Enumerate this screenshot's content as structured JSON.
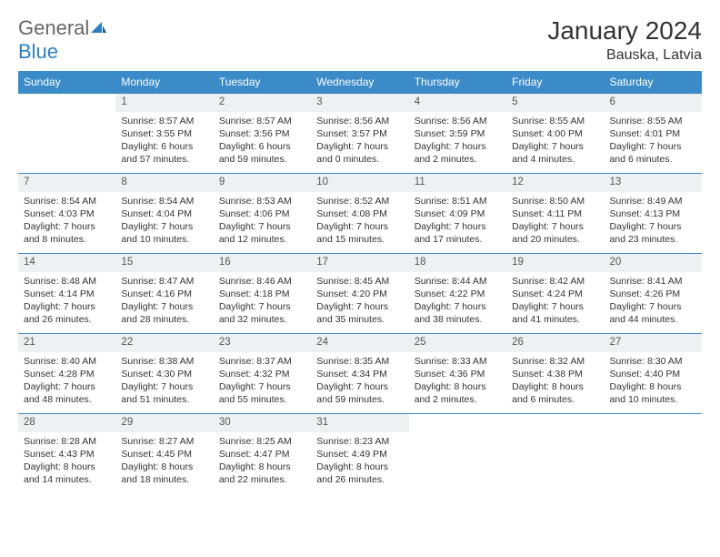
{
  "brand": {
    "part1": "General",
    "part2": "Blue"
  },
  "title": "January 2024",
  "location": "Bauska, Latvia",
  "colors": {
    "header_bg": "#3b8bc9",
    "header_text": "#ffffff",
    "daynum_bg": "#eef0f2",
    "row_border": "#3b8bc9",
    "body_text": "#333333",
    "brand_gray": "#666666",
    "brand_blue": "#2d7fc4",
    "page_bg": "#ffffff"
  },
  "typography": {
    "title_fontsize": 28,
    "location_fontsize": 16,
    "weekday_fontsize": 12,
    "daynum_fontsize": 11.5,
    "cell_fontsize": 10.5
  },
  "weekdays": [
    "Sunday",
    "Monday",
    "Tuesday",
    "Wednesday",
    "Thursday",
    "Friday",
    "Saturday"
  ],
  "weeks": [
    [
      null,
      {
        "n": "1",
        "sr": "Sunrise: 8:57 AM",
        "ss": "Sunset: 3:55 PM",
        "d1": "Daylight: 6 hours",
        "d2": "and 57 minutes."
      },
      {
        "n": "2",
        "sr": "Sunrise: 8:57 AM",
        "ss": "Sunset: 3:56 PM",
        "d1": "Daylight: 6 hours",
        "d2": "and 59 minutes."
      },
      {
        "n": "3",
        "sr": "Sunrise: 8:56 AM",
        "ss": "Sunset: 3:57 PM",
        "d1": "Daylight: 7 hours",
        "d2": "and 0 minutes."
      },
      {
        "n": "4",
        "sr": "Sunrise: 8:56 AM",
        "ss": "Sunset: 3:59 PM",
        "d1": "Daylight: 7 hours",
        "d2": "and 2 minutes."
      },
      {
        "n": "5",
        "sr": "Sunrise: 8:55 AM",
        "ss": "Sunset: 4:00 PM",
        "d1": "Daylight: 7 hours",
        "d2": "and 4 minutes."
      },
      {
        "n": "6",
        "sr": "Sunrise: 8:55 AM",
        "ss": "Sunset: 4:01 PM",
        "d1": "Daylight: 7 hours",
        "d2": "and 6 minutes."
      }
    ],
    [
      {
        "n": "7",
        "sr": "Sunrise: 8:54 AM",
        "ss": "Sunset: 4:03 PM",
        "d1": "Daylight: 7 hours",
        "d2": "and 8 minutes."
      },
      {
        "n": "8",
        "sr": "Sunrise: 8:54 AM",
        "ss": "Sunset: 4:04 PM",
        "d1": "Daylight: 7 hours",
        "d2": "and 10 minutes."
      },
      {
        "n": "9",
        "sr": "Sunrise: 8:53 AM",
        "ss": "Sunset: 4:06 PM",
        "d1": "Daylight: 7 hours",
        "d2": "and 12 minutes."
      },
      {
        "n": "10",
        "sr": "Sunrise: 8:52 AM",
        "ss": "Sunset: 4:08 PM",
        "d1": "Daylight: 7 hours",
        "d2": "and 15 minutes."
      },
      {
        "n": "11",
        "sr": "Sunrise: 8:51 AM",
        "ss": "Sunset: 4:09 PM",
        "d1": "Daylight: 7 hours",
        "d2": "and 17 minutes."
      },
      {
        "n": "12",
        "sr": "Sunrise: 8:50 AM",
        "ss": "Sunset: 4:11 PM",
        "d1": "Daylight: 7 hours",
        "d2": "and 20 minutes."
      },
      {
        "n": "13",
        "sr": "Sunrise: 8:49 AM",
        "ss": "Sunset: 4:13 PM",
        "d1": "Daylight: 7 hours",
        "d2": "and 23 minutes."
      }
    ],
    [
      {
        "n": "14",
        "sr": "Sunrise: 8:48 AM",
        "ss": "Sunset: 4:14 PM",
        "d1": "Daylight: 7 hours",
        "d2": "and 26 minutes."
      },
      {
        "n": "15",
        "sr": "Sunrise: 8:47 AM",
        "ss": "Sunset: 4:16 PM",
        "d1": "Daylight: 7 hours",
        "d2": "and 28 minutes."
      },
      {
        "n": "16",
        "sr": "Sunrise: 8:46 AM",
        "ss": "Sunset: 4:18 PM",
        "d1": "Daylight: 7 hours",
        "d2": "and 32 minutes."
      },
      {
        "n": "17",
        "sr": "Sunrise: 8:45 AM",
        "ss": "Sunset: 4:20 PM",
        "d1": "Daylight: 7 hours",
        "d2": "and 35 minutes."
      },
      {
        "n": "18",
        "sr": "Sunrise: 8:44 AM",
        "ss": "Sunset: 4:22 PM",
        "d1": "Daylight: 7 hours",
        "d2": "and 38 minutes."
      },
      {
        "n": "19",
        "sr": "Sunrise: 8:42 AM",
        "ss": "Sunset: 4:24 PM",
        "d1": "Daylight: 7 hours",
        "d2": "and 41 minutes."
      },
      {
        "n": "20",
        "sr": "Sunrise: 8:41 AM",
        "ss": "Sunset: 4:26 PM",
        "d1": "Daylight: 7 hours",
        "d2": "and 44 minutes."
      }
    ],
    [
      {
        "n": "21",
        "sr": "Sunrise: 8:40 AM",
        "ss": "Sunset: 4:28 PM",
        "d1": "Daylight: 7 hours",
        "d2": "and 48 minutes."
      },
      {
        "n": "22",
        "sr": "Sunrise: 8:38 AM",
        "ss": "Sunset: 4:30 PM",
        "d1": "Daylight: 7 hours",
        "d2": "and 51 minutes."
      },
      {
        "n": "23",
        "sr": "Sunrise: 8:37 AM",
        "ss": "Sunset: 4:32 PM",
        "d1": "Daylight: 7 hours",
        "d2": "and 55 minutes."
      },
      {
        "n": "24",
        "sr": "Sunrise: 8:35 AM",
        "ss": "Sunset: 4:34 PM",
        "d1": "Daylight: 7 hours",
        "d2": "and 59 minutes."
      },
      {
        "n": "25",
        "sr": "Sunrise: 8:33 AM",
        "ss": "Sunset: 4:36 PM",
        "d1": "Daylight: 8 hours",
        "d2": "and 2 minutes."
      },
      {
        "n": "26",
        "sr": "Sunrise: 8:32 AM",
        "ss": "Sunset: 4:38 PM",
        "d1": "Daylight: 8 hours",
        "d2": "and 6 minutes."
      },
      {
        "n": "27",
        "sr": "Sunrise: 8:30 AM",
        "ss": "Sunset: 4:40 PM",
        "d1": "Daylight: 8 hours",
        "d2": "and 10 minutes."
      }
    ],
    [
      {
        "n": "28",
        "sr": "Sunrise: 8:28 AM",
        "ss": "Sunset: 4:43 PM",
        "d1": "Daylight: 8 hours",
        "d2": "and 14 minutes."
      },
      {
        "n": "29",
        "sr": "Sunrise: 8:27 AM",
        "ss": "Sunset: 4:45 PM",
        "d1": "Daylight: 8 hours",
        "d2": "and 18 minutes."
      },
      {
        "n": "30",
        "sr": "Sunrise: 8:25 AM",
        "ss": "Sunset: 4:47 PM",
        "d1": "Daylight: 8 hours",
        "d2": "and 22 minutes."
      },
      {
        "n": "31",
        "sr": "Sunrise: 8:23 AM",
        "ss": "Sunset: 4:49 PM",
        "d1": "Daylight: 8 hours",
        "d2": "and 26 minutes."
      },
      null,
      null,
      null
    ]
  ]
}
